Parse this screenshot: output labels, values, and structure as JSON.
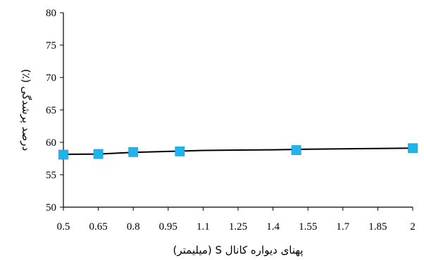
{
  "chart_data": {
    "type": "line",
    "title": "",
    "xlabel": "پهنای دیواره کانال S (میلیمتر)",
    "ylabel": "درصد پرشدگی (٪)",
    "xlim": [
      0.5,
      2
    ],
    "ylim": [
      50,
      80
    ],
    "x_ticks": [
      0.5,
      0.65,
      0.8,
      0.95,
      1.1,
      1.25,
      1.4,
      1.55,
      1.7,
      1.85,
      2
    ],
    "x_tick_labels": [
      "0.5",
      "0.65",
      "0.8",
      "0.95",
      "1.1",
      "1.25",
      "1.4",
      "1.55",
      "1.7",
      "1.85",
      "2"
    ],
    "y_ticks": [
      50,
      55,
      60,
      65,
      70,
      75,
      80
    ],
    "y_tick_labels": [
      "50",
      "55",
      "60",
      "65",
      "70",
      "75",
      "80"
    ],
    "grid": false,
    "legend": "none",
    "series": [
      {
        "marker": "square",
        "marker_color": "#1fb4ee",
        "line_color": "#000000",
        "points": [
          {
            "x": 0.5,
            "y": 58.1
          },
          {
            "x": 0.65,
            "y": 58.2
          },
          {
            "x": 0.8,
            "y": 58.5
          },
          {
            "x": 1.0,
            "y": 58.6
          },
          {
            "x": 1.5,
            "y": 58.8
          },
          {
            "x": 2.0,
            "y": 59.1
          }
        ]
      }
    ],
    "trendline": {
      "color": "#000000",
      "points": [
        {
          "x": 0.5,
          "y": 58.15
        },
        {
          "x": 0.65,
          "y": 58.2
        },
        {
          "x": 0.8,
          "y": 58.45
        },
        {
          "x": 0.95,
          "y": 58.6
        },
        {
          "x": 1.1,
          "y": 58.75
        },
        {
          "x": 1.25,
          "y": 58.8
        },
        {
          "x": 1.4,
          "y": 58.85
        },
        {
          "x": 1.55,
          "y": 58.95
        },
        {
          "x": 1.7,
          "y": 59.0
        },
        {
          "x": 1.85,
          "y": 59.05
        },
        {
          "x": 2.0,
          "y": 59.1
        }
      ]
    }
  }
}
